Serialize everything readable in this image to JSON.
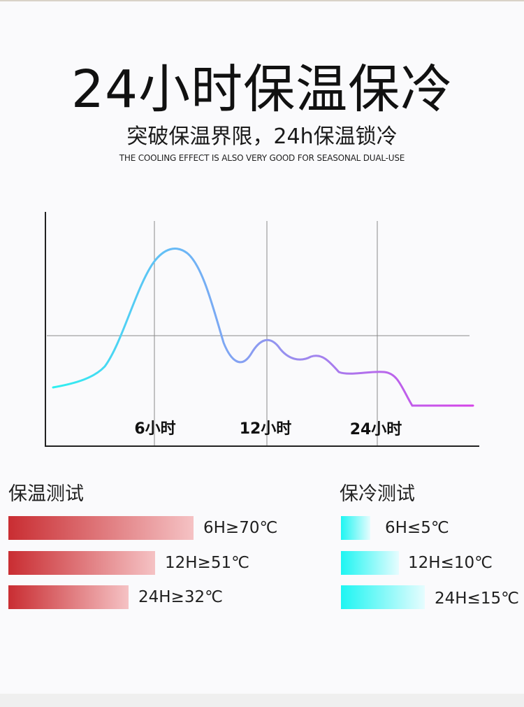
{
  "header": {
    "title": "24小时保温保冷",
    "subtitle": "突破保温界限，24h保温锁冷",
    "english": "THE COOLING EFFECT IS ALSO VERY GOOD FOR SEASONAL DUAL-USE"
  },
  "chart_data": {
    "type": "line",
    "title": "",
    "xlabel": "",
    "ylabel": "",
    "x_tick_labels": [
      "6小时",
      "12小时",
      "24小时"
    ],
    "grid": "vertical lines at tick positions plus one horizontal reference line",
    "legend": "none",
    "series": [
      {
        "color_start": "#2ef0f0",
        "color_mid": "#8aa2f2",
        "color_end": "#d543e8"
      }
    ]
  },
  "heat_test": {
    "title": "保温测试",
    "bar_color_start": "#c92d32",
    "bar_color_end": "#f5c2c4",
    "items": [
      {
        "label": "6H≥70℃",
        "value": 70
      },
      {
        "label": "12H≥51℃",
        "value": 51
      },
      {
        "label": "24H≥32℃",
        "value": 32
      }
    ]
  },
  "cold_test": {
    "title": "保冷测试",
    "bar_color_start": "#1ef5f2",
    "bar_color_end": "#e6fcfe",
    "items": [
      {
        "label": "6H≤5℃",
        "value": 5
      },
      {
        "label": "12H≤10℃",
        "value": 10
      },
      {
        "label": "24H≤15℃",
        "value": 15
      }
    ]
  }
}
